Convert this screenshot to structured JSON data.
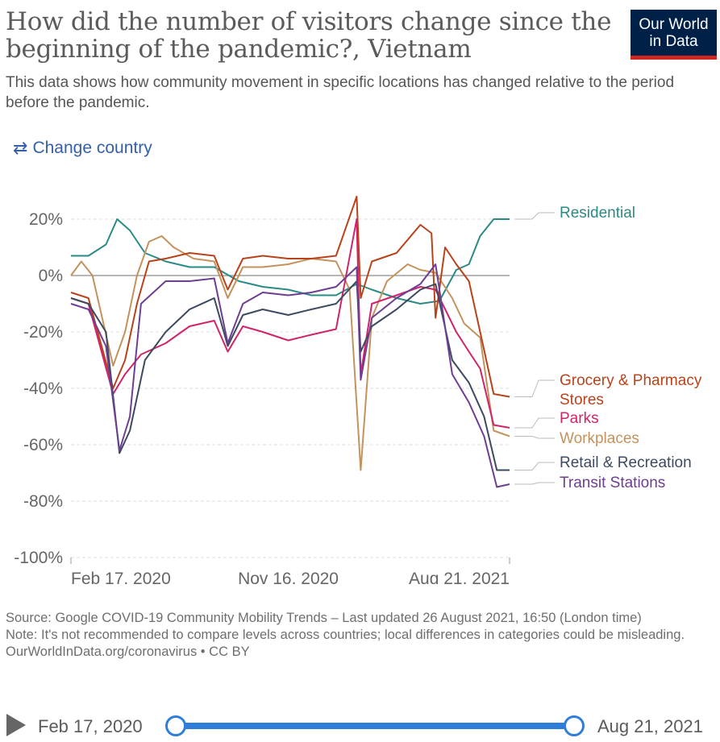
{
  "header": {
    "title": "How did the number of visitors change since the beginning of the pandemic?, Vietnam",
    "subtitle": "This data shows how community movement in specific locations has changed relative to the period before the pandemic.",
    "logo_line1": "Our World",
    "logo_line2": "in Data",
    "change_country": "Change country"
  },
  "colors": {
    "Residential": "#2a8a84",
    "Grocery & Pharmacy Stores": "#b8431a",
    "Parks": "#d0246a",
    "Workplaces": "#c4925c",
    "Retail & Recreation": "#3d4a5f",
    "Transit Stations": "#6d3e91"
  },
  "chart_data": {
    "type": "line",
    "x_ticks": [
      "Feb 17, 2020",
      "Nov 16, 2020",
      "Aug 21, 2021"
    ],
    "x_range": [
      "2020-02-17",
      "2021-08-21"
    ],
    "ylim": [
      -100,
      30
    ],
    "y_ticks": [
      20,
      0,
      -20,
      -40,
      -60,
      -80,
      -100
    ],
    "y_tick_labels": [
      "20%",
      "0%",
      "-20%",
      "-40%",
      "-60%",
      "-80%",
      "-100%"
    ],
    "grid": "horizontal dashed",
    "legend": "right, line end labels",
    "series": [
      {
        "name": "Residential",
        "points": [
          [
            "2020-02-17",
            7
          ],
          [
            "2020-03-10",
            7
          ],
          [
            "2020-04-01",
            11
          ],
          [
            "2020-04-15",
            20
          ],
          [
            "2020-05-01",
            16
          ],
          [
            "2020-05-20",
            8
          ],
          [
            "2020-06-15",
            5
          ],
          [
            "2020-07-15",
            3
          ],
          [
            "2020-08-15",
            3
          ],
          [
            "2020-09-15",
            -2
          ],
          [
            "2020-10-15",
            -4
          ],
          [
            "2020-11-16",
            -5
          ],
          [
            "2020-12-15",
            -7
          ],
          [
            "2021-01-15",
            -7
          ],
          [
            "2021-02-10",
            -3
          ],
          [
            "2021-03-01",
            -5
          ],
          [
            "2021-04-01",
            -8
          ],
          [
            "2021-05-01",
            -10
          ],
          [
            "2021-05-25",
            -9
          ],
          [
            "2021-06-15",
            2
          ],
          [
            "2021-07-01",
            4
          ],
          [
            "2021-07-15",
            14
          ],
          [
            "2021-08-01",
            20
          ],
          [
            "2021-08-21",
            20
          ]
        ]
      },
      {
        "name": "Grocery & Pharmacy Stores",
        "points": [
          [
            "2020-02-17",
            -6
          ],
          [
            "2020-03-10",
            -8
          ],
          [
            "2020-04-10",
            -40
          ],
          [
            "2020-04-25",
            -30
          ],
          [
            "2020-05-10",
            -10
          ],
          [
            "2020-05-25",
            5
          ],
          [
            "2020-06-15",
            6
          ],
          [
            "2020-07-15",
            8
          ],
          [
            "2020-08-15",
            7
          ],
          [
            "2020-09-01",
            -5
          ],
          [
            "2020-09-20",
            6
          ],
          [
            "2020-10-15",
            7
          ],
          [
            "2020-11-16",
            6
          ],
          [
            "2020-12-15",
            6
          ],
          [
            "2021-01-15",
            7
          ],
          [
            "2021-02-10",
            28
          ],
          [
            "2021-02-15",
            -8
          ],
          [
            "2021-03-01",
            5
          ],
          [
            "2021-04-01",
            8
          ],
          [
            "2021-05-01",
            18
          ],
          [
            "2021-05-15",
            15
          ],
          [
            "2021-05-20",
            -15
          ],
          [
            "2021-06-01",
            10
          ],
          [
            "2021-06-15",
            4
          ],
          [
            "2021-07-01",
            -2
          ],
          [
            "2021-07-15",
            -20
          ],
          [
            "2021-08-01",
            -42
          ],
          [
            "2021-08-21",
            -43
          ]
        ]
      },
      {
        "name": "Parks",
        "points": [
          [
            "2020-02-17",
            -8
          ],
          [
            "2020-03-10",
            -10
          ],
          [
            "2020-04-10",
            -42
          ],
          [
            "2020-04-25",
            -35
          ],
          [
            "2020-05-15",
            -28
          ],
          [
            "2020-06-15",
            -24
          ],
          [
            "2020-07-15",
            -18
          ],
          [
            "2020-08-15",
            -16
          ],
          [
            "2020-09-01",
            -27
          ],
          [
            "2020-09-20",
            -18
          ],
          [
            "2020-10-15",
            -20
          ],
          [
            "2020-11-16",
            -23
          ],
          [
            "2020-12-15",
            -21
          ],
          [
            "2021-01-15",
            -19
          ],
          [
            "2021-02-10",
            20
          ],
          [
            "2021-02-15",
            -35
          ],
          [
            "2021-03-01",
            -10
          ],
          [
            "2021-04-01",
            -7
          ],
          [
            "2021-05-01",
            -4
          ],
          [
            "2021-05-20",
            -5
          ],
          [
            "2021-06-15",
            -20
          ],
          [
            "2021-07-01",
            -27
          ],
          [
            "2021-07-15",
            -33
          ],
          [
            "2021-08-01",
            -53
          ],
          [
            "2021-08-21",
            -54
          ]
        ]
      },
      {
        "name": "Workplaces",
        "points": [
          [
            "2020-02-17",
            0
          ],
          [
            "2020-03-01",
            5
          ],
          [
            "2020-03-15",
            0
          ],
          [
            "2020-04-10",
            -32
          ],
          [
            "2020-04-25",
            -20
          ],
          [
            "2020-05-10",
            0
          ],
          [
            "2020-05-25",
            12
          ],
          [
            "2020-06-10",
            14
          ],
          [
            "2020-06-25",
            10
          ],
          [
            "2020-07-20",
            6
          ],
          [
            "2020-08-15",
            5
          ],
          [
            "2020-09-01",
            -8
          ],
          [
            "2020-09-20",
            3
          ],
          [
            "2020-10-15",
            3
          ],
          [
            "2020-11-16",
            4
          ],
          [
            "2020-12-15",
            6
          ],
          [
            "2021-01-15",
            5
          ],
          [
            "2021-02-01",
            -5
          ],
          [
            "2021-02-15",
            -69
          ],
          [
            "2021-03-01",
            -15
          ],
          [
            "2021-03-20",
            -2
          ],
          [
            "2021-04-15",
            4
          ],
          [
            "2021-05-01",
            2
          ],
          [
            "2021-05-20",
            1
          ],
          [
            "2021-06-10",
            -8
          ],
          [
            "2021-06-25",
            -17
          ],
          [
            "2021-07-15",
            -22
          ],
          [
            "2021-08-01",
            -55
          ],
          [
            "2021-08-21",
            -57
          ]
        ]
      },
      {
        "name": "Retail & Recreation",
        "points": [
          [
            "2020-02-17",
            -8
          ],
          [
            "2020-03-10",
            -10
          ],
          [
            "2020-04-01",
            -20
          ],
          [
            "2020-04-18",
            -63
          ],
          [
            "2020-05-01",
            -55
          ],
          [
            "2020-05-20",
            -30
          ],
          [
            "2020-06-15",
            -20
          ],
          [
            "2020-07-15",
            -12
          ],
          [
            "2020-08-15",
            -8
          ],
          [
            "2020-09-01",
            -25
          ],
          [
            "2020-09-20",
            -14
          ],
          [
            "2020-10-15",
            -12
          ],
          [
            "2020-11-16",
            -14
          ],
          [
            "2020-12-15",
            -12
          ],
          [
            "2021-01-15",
            -10
          ],
          [
            "2021-02-10",
            -2
          ],
          [
            "2021-02-15",
            -27
          ],
          [
            "2021-03-01",
            -18
          ],
          [
            "2021-04-01",
            -12
          ],
          [
            "2021-05-01",
            -5
          ],
          [
            "2021-05-20",
            -3
          ],
          [
            "2021-06-10",
            -30
          ],
          [
            "2021-07-01",
            -38
          ],
          [
            "2021-07-20",
            -50
          ],
          [
            "2021-08-05",
            -69
          ],
          [
            "2021-08-21",
            -69
          ]
        ]
      },
      {
        "name": "Transit Stations",
        "points": [
          [
            "2020-02-17",
            -10
          ],
          [
            "2020-03-10",
            -12
          ],
          [
            "2020-04-01",
            -25
          ],
          [
            "2020-04-18",
            -62
          ],
          [
            "2020-05-01",
            -50
          ],
          [
            "2020-05-15",
            -10
          ],
          [
            "2020-06-15",
            -2
          ],
          [
            "2020-07-15",
            -2
          ],
          [
            "2020-08-15",
            -1
          ],
          [
            "2020-09-01",
            -24
          ],
          [
            "2020-09-20",
            -10
          ],
          [
            "2020-10-15",
            -6
          ],
          [
            "2020-11-16",
            -7
          ],
          [
            "2020-12-15",
            -6
          ],
          [
            "2021-01-15",
            -4
          ],
          [
            "2021-02-10",
            3
          ],
          [
            "2021-02-15",
            -37
          ],
          [
            "2021-03-01",
            -15
          ],
          [
            "2021-04-01",
            -8
          ],
          [
            "2021-05-01",
            -3
          ],
          [
            "2021-05-20",
            4
          ],
          [
            "2021-06-10",
            -35
          ],
          [
            "2021-07-01",
            -45
          ],
          [
            "2021-07-20",
            -57
          ],
          [
            "2021-08-05",
            -75
          ],
          [
            "2021-08-21",
            -74
          ]
        ]
      }
    ],
    "end_labels": [
      {
        "series": "Residential",
        "lines": [
          "Residential"
        ]
      },
      {
        "series": "Grocery & Pharmacy Stores",
        "lines": [
          "Grocery & Pharmacy",
          "Stores"
        ]
      },
      {
        "series": "Parks",
        "lines": [
          "Parks"
        ]
      },
      {
        "series": "Workplaces",
        "lines": [
          "Workplaces"
        ]
      },
      {
        "series": "Retail & Recreation",
        "lines": [
          "Retail & Recreation"
        ]
      },
      {
        "series": "Transit Stations",
        "lines": [
          "Transit Stations"
        ]
      }
    ]
  },
  "footer": {
    "source": "Source: Google COVID-19 Community Mobility Trends – Last updated 26 August 2021, 16:50 (London time)",
    "note": "Note: It's not recommended to compare levels across countries; local differences in categories could be misleading.",
    "url": "OurWorldInData.org/coronavirus • CC BY"
  },
  "timeline": {
    "start": "Feb 17, 2020",
    "end": "Aug 21, 2021"
  }
}
